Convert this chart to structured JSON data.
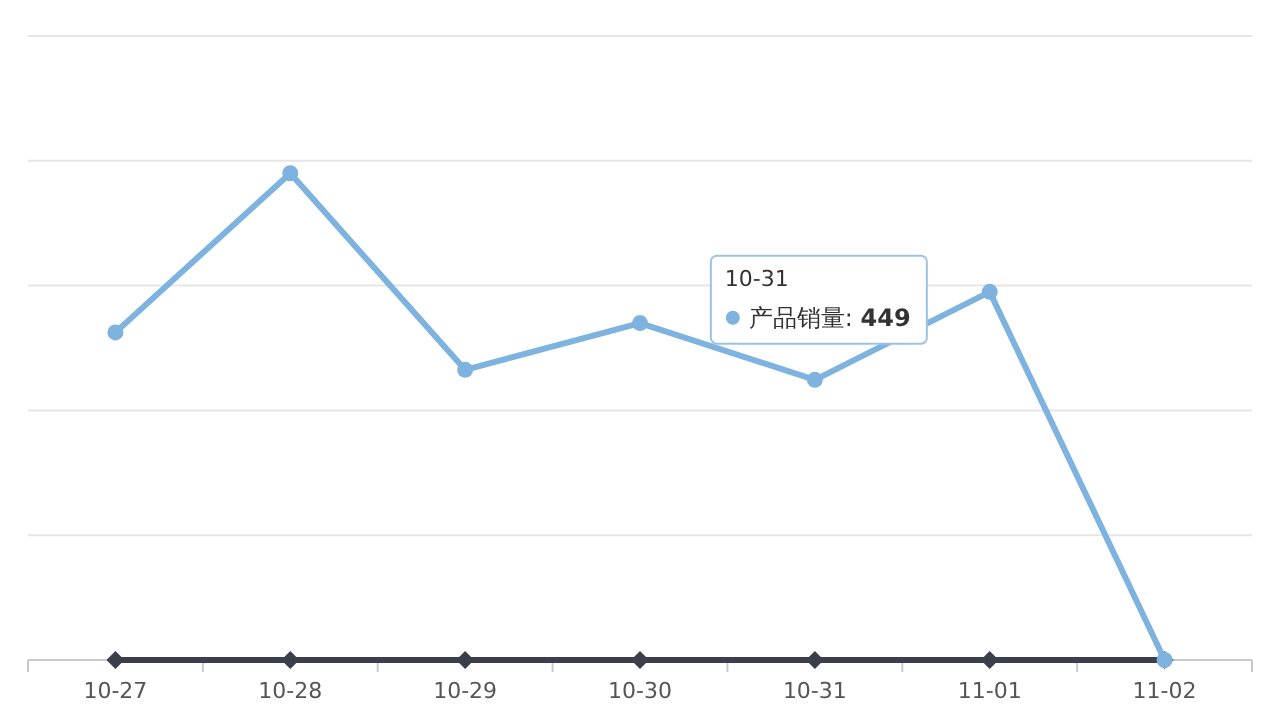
{
  "chart_data": {
    "type": "line",
    "categories": [
      "10-27",
      "10-28",
      "10-29",
      "10-30",
      "10-31",
      "11-01",
      "11-02"
    ],
    "series": [
      {
        "name": "产品销量:",
        "color": "#7eb3e0",
        "marker": "circle",
        "values": [
          525,
          780,
          465,
          540,
          449,
          590,
          0
        ],
        "value_labels": [
          null,
          null,
          null,
          null,
          "449",
          null,
          null
        ]
      },
      {
        "color": "#3a3f4b",
        "marker": "diamond",
        "values": [
          0,
          0,
          0,
          0,
          0,
          0,
          0
        ]
      }
    ],
    "ylim": [
      0,
      1000
    ],
    "yticks": [
      {
        "value": 0,
        "label": null
      },
      {
        "value": 200,
        "label": null
      },
      {
        "value": 400,
        "label": null
      },
      {
        "value": 600,
        "label": null
      },
      {
        "value": 800,
        "label": null
      },
      {
        "value": 1000,
        "label": null
      }
    ],
    "grid": "y",
    "line_style": "solid"
  }
}
